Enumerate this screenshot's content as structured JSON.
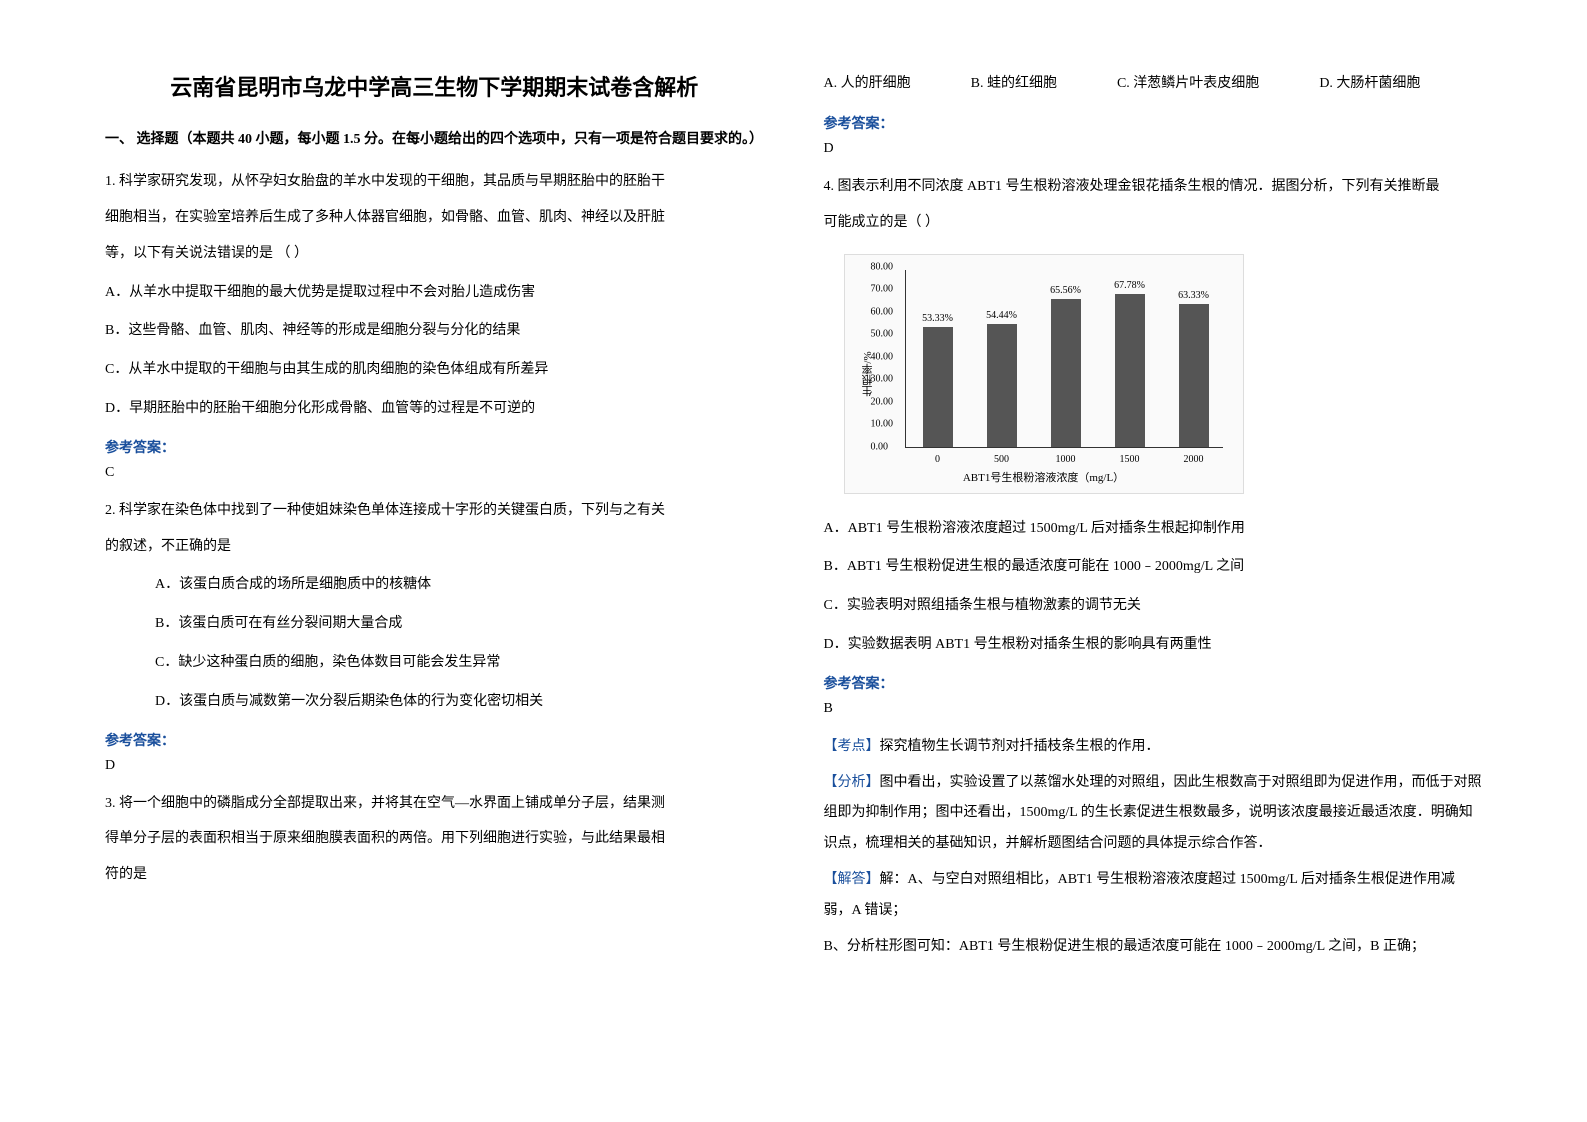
{
  "title": "云南省昆明市乌龙中学高三生物下学期期末试卷含解析",
  "section_header": "一、 选择题（本题共 40 小题，每小题 1.5 分。在每小题给出的四个选项中，只有一项是符合题目要求的。）",
  "q1": {
    "stem_l1": "1. 科学家研究发现，从怀孕妇女胎盘的羊水中发现的干细胞，其品质与早期胚胎中的胚胎干",
    "stem_l2": "细胞相当，在实验室培养后生成了多种人体器官细胞，如骨骼、血管、肌肉、神经以及肝脏",
    "stem_l3": "等，以下有关说法错误的是                        （   ）",
    "a": "A．从羊水中提取干细胞的最大优势是提取过程中不会对胎儿造成伤害",
    "b": "B．这些骨骼、血管、肌肉、神经等的形成是细胞分裂与分化的结果",
    "c": "C．从羊水中提取的干细胞与由其生成的肌肉细胞的染色体组成有所差异",
    "d": "D．早期胚胎中的胚胎干细胞分化形成骨骼、血管等的过程是不可逆的",
    "answer_label": "参考答案：",
    "answer": "C"
  },
  "q2": {
    "stem_l1": "2. 科学家在染色体中找到了一种使姐妹染色单体连接成十字形的关键蛋白质，下列与之有关",
    "stem_l2": "的叙述，不正确的是",
    "a": "A．该蛋白质合成的场所是细胞质中的核糖体",
    "b": "B．该蛋白质可在有丝分裂间期大量合成",
    "c": "C．缺少这种蛋白质的细胞，染色体数目可能会发生异常",
    "d": "D．该蛋白质与减数第一次分裂后期染色体的行为变化密切相关",
    "answer_label": "参考答案：",
    "answer": "D"
  },
  "q3": {
    "stem_l1": "3. 将一个细胞中的磷脂成分全部提取出来，并将其在空气—水界面上铺成单分子层，结果测",
    "stem_l2": "得单分子层的表面积相当于原来细胞膜表面积的两倍。用下列细胞进行实验，与此结果最相",
    "stem_l3": "符的是",
    "options": {
      "a": "A. 人的肝细胞",
      "b": "B. 蛙的红细胞",
      "c": "C. 洋葱鳞片叶表皮细胞",
      "d": "D. 大肠杆菌细胞"
    },
    "answer_label": "参考答案：",
    "answer": "D"
  },
  "q4": {
    "stem_l1": "4. 图表示利用不同浓度 ABT1 号生根粉溶液处理金银花插条生根的情况．据图分析，下列有关推断最",
    "stem_l2": "可能成立的是（    ）",
    "a": "A．ABT1 号生根粉溶液浓度超过 1500mg/L 后对插条生根起抑制作用",
    "b": "B．ABT1 号生根粉促进生根的最适浓度可能在 1000﹣2000mg/L 之间",
    "c": "C．实验表明对照组插条生根与植物激素的调节无关",
    "d": "D．实验数据表明 ABT1 号生根粉对插条生根的影响具有两重性",
    "answer_label": "参考答案：",
    "answer": "B",
    "exp_label": "【考点】",
    "exp1": "探究植物生长调节剂对扦插枝条生根的作用．",
    "ana_label": "【分析】",
    "ana": "图中看出，实验设置了以蒸馏水处理的对照组，因此生根数高于对照组即为促进作用，而低于对照组即为抑制作用；图中还看出，1500mg/L 的生长素促进生根数最多，说明该浓度最接近最适浓度．明确知识点，梳理相关的基础知识，并解析题图结合问题的具体提示综合作答．",
    "sol_label": "【解答】",
    "sol_a": "解：A、与空白对照组相比，ABT1 号生根粉溶液浓度超过 1500mg/L 后对插条生根促进作用减弱，A 错误；",
    "sol_b": "B、分析柱形图可知：ABT1 号生根粉促进生根的最适浓度可能在 1000﹣2000mg/L 之间，B 正确；"
  },
  "chart": {
    "type": "bar",
    "categories": [
      "0",
      "500",
      "1000",
      "1500",
      "2000"
    ],
    "values": [
      53.33,
      54.44,
      65.56,
      67.78,
      63.33
    ],
    "value_labels": [
      "53.33%",
      "54.44%",
      "65.56%",
      "67.78%",
      "63.33%"
    ],
    "ylabel": "生根率/%",
    "xlabel": "ABT1号生根粉溶液浓度（mg/L）",
    "ylim": [
      0,
      80
    ],
    "ytick_step": 10,
    "bar_color": "#555555",
    "background_color": "#fafafa"
  }
}
